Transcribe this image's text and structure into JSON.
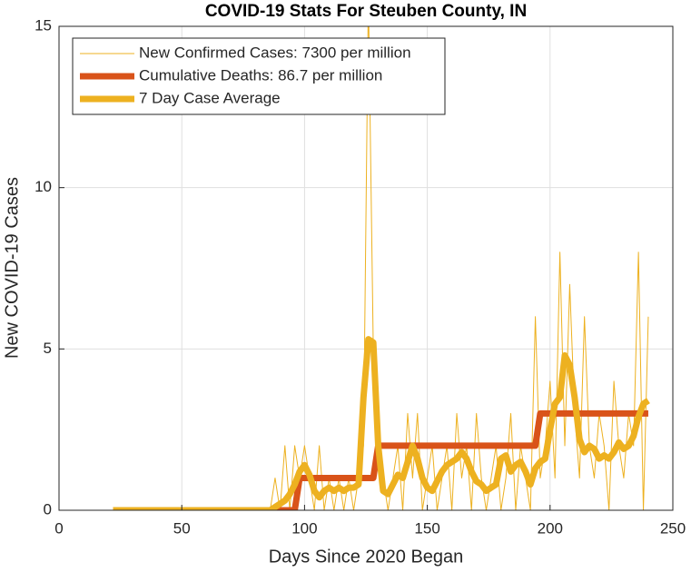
{
  "chart_data": {
    "type": "line",
    "title": "COVID-19 Stats For Steuben County, IN",
    "xlabel": "Days Since 2020 Began",
    "ylabel": "New COVID-19 Cases",
    "xlim": [
      0,
      250
    ],
    "ylim": [
      0,
      15
    ],
    "xticks": [
      0,
      50,
      100,
      150,
      200,
      250
    ],
    "yticks": [
      0,
      5,
      10,
      15
    ],
    "grid": true,
    "legend": "upper left",
    "x": [
      22,
      24,
      26,
      28,
      30,
      32,
      34,
      36,
      38,
      40,
      42,
      44,
      46,
      48,
      50,
      52,
      54,
      56,
      58,
      60,
      62,
      64,
      66,
      68,
      70,
      72,
      74,
      76,
      78,
      80,
      82,
      84,
      86,
      88,
      90,
      92,
      94,
      96,
      98,
      100,
      102,
      104,
      106,
      108,
      110,
      112,
      114,
      116,
      118,
      120,
      122,
      124,
      126,
      128,
      130,
      132,
      134,
      136,
      138,
      140,
      142,
      144,
      146,
      148,
      150,
      152,
      154,
      156,
      158,
      160,
      162,
      164,
      166,
      168,
      170,
      172,
      174,
      176,
      178,
      180,
      182,
      184,
      186,
      188,
      190,
      192,
      194,
      196,
      198,
      200,
      202,
      204,
      206,
      208,
      210,
      212,
      214,
      216,
      218,
      220,
      222,
      224,
      226,
      228,
      230,
      232,
      234,
      236,
      238,
      240
    ],
    "series": [
      {
        "name": "New Confirmed Cases: 7300 per million",
        "color": "#EDB120",
        "width": 1,
        "values": [
          0,
          0,
          0,
          0,
          0,
          0,
          0,
          0,
          0,
          0,
          0,
          0,
          0,
          0,
          0,
          0,
          0,
          0,
          0,
          0,
          0,
          0,
          0,
          0,
          0,
          0,
          0,
          0,
          0,
          0,
          0,
          0,
          0,
          1,
          0,
          2,
          0,
          2,
          1,
          2,
          1,
          0,
          2,
          0,
          1,
          0,
          1,
          0,
          1,
          0,
          1,
          2,
          16,
          5,
          3,
          1,
          0,
          1,
          2,
          0,
          3,
          1,
          3,
          0,
          1,
          2,
          0,
          1,
          2,
          0,
          3,
          1,
          2,
          0,
          3,
          1,
          0,
          1,
          2,
          0,
          1,
          3,
          0,
          2,
          1,
          0,
          6,
          1,
          2,
          4,
          1,
          8,
          2,
          7,
          3,
          1,
          6,
          2,
          1,
          3,
          2,
          0,
          4,
          2,
          1,
          3,
          2,
          8,
          0,
          6
        ]
      },
      {
        "name": "Cumulative Deaths: 86.7 per million",
        "color": "#D95319",
        "width": 7,
        "values": [
          0,
          0,
          0,
          0,
          0,
          0,
          0,
          0,
          0,
          0,
          0,
          0,
          0,
          0,
          0,
          0,
          0,
          0,
          0,
          0,
          0,
          0,
          0,
          0,
          0,
          0,
          0,
          0,
          0,
          0,
          0,
          0,
          0,
          0,
          0,
          0,
          0,
          0,
          1,
          1,
          1,
          1,
          1,
          1,
          1,
          1,
          1,
          1,
          1,
          1,
          1,
          1,
          1,
          1,
          2,
          2,
          2,
          2,
          2,
          2,
          2,
          2,
          2,
          2,
          2,
          2,
          2,
          2,
          2,
          2,
          2,
          2,
          2,
          2,
          2,
          2,
          2,
          2,
          2,
          2,
          2,
          2,
          2,
          2,
          2,
          2,
          2,
          3,
          3,
          3,
          3,
          3,
          3,
          3,
          3,
          3,
          3,
          3,
          3,
          3,
          3,
          3,
          3,
          3,
          3,
          3,
          3,
          3,
          3,
          3
        ]
      },
      {
        "name": "7 Day Case Average",
        "color": "#EDB120",
        "width": 7,
        "values": [
          0,
          0,
          0,
          0,
          0,
          0,
          0,
          0,
          0,
          0,
          0,
          0,
          0,
          0,
          0,
          0,
          0,
          0,
          0,
          0,
          0,
          0,
          0,
          0,
          0,
          0,
          0,
          0,
          0,
          0,
          0,
          0,
          0,
          0.1,
          0.2,
          0.3,
          0.5,
          0.8,
          1.2,
          1.4,
          1.1,
          0.6,
          0.4,
          0.6,
          0.7,
          0.6,
          0.7,
          0.6,
          0.7,
          0.7,
          0.8,
          3.5,
          5.3,
          5.2,
          2,
          0.6,
          0.5,
          0.8,
          1.1,
          1,
          1.5,
          2,
          1.6,
          1,
          0.7,
          0.6,
          0.9,
          1.2,
          1.4,
          1.5,
          1.6,
          1.8,
          1.6,
          1.2,
          0.9,
          0.8,
          0.6,
          0.7,
          0.8,
          1.6,
          1.7,
          1.2,
          1.4,
          1.5,
          1.2,
          0.8,
          1.3,
          1.5,
          1.6,
          2.5,
          3.3,
          3.5,
          4.8,
          4.5,
          3.5,
          2.2,
          1.8,
          2,
          1.9,
          1.6,
          1.7,
          1.6,
          1.8,
          2.1,
          1.9,
          2,
          2.3,
          2.9,
          3.3,
          3.4
        ]
      }
    ]
  }
}
